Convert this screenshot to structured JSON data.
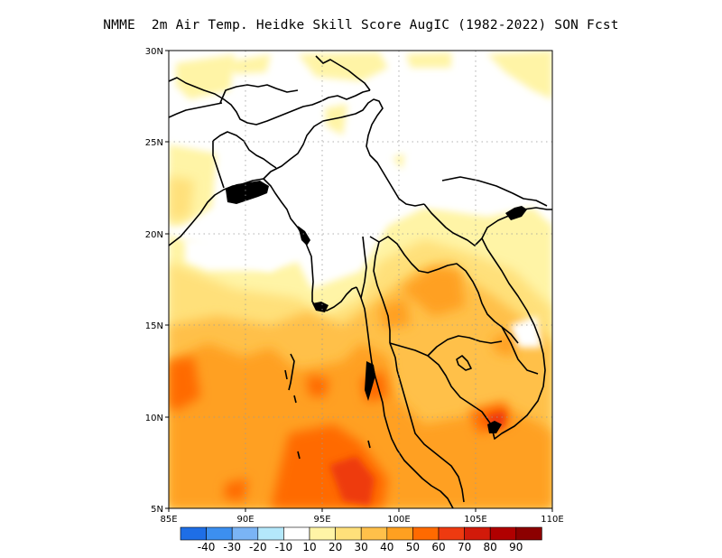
{
  "title": "NMME  2m Air Temp. Heidke Skill Score AugIC (1982-2022) SON Fcst",
  "map": {
    "lon_labels": [
      "85E",
      "90E",
      "95E",
      "100E",
      "105E",
      "110E"
    ],
    "lat_labels": [
      "30N",
      "25N",
      "20N",
      "15N",
      "10N",
      "5N"
    ],
    "lon_range": [
      85,
      110
    ],
    "lat_range": [
      5,
      30
    ],
    "projection": "lat-lon",
    "grid": "dotted",
    "features": [
      "coastlines",
      "country borders"
    ]
  },
  "colorbar": {
    "labels": [
      "-40",
      "-30",
      "-20",
      "-10",
      "10",
      "20",
      "30",
      "40",
      "50",
      "60",
      "70",
      "80",
      "90"
    ],
    "colors": [
      "#1e6ee6",
      "#3c8ff0",
      "#7ab4f5",
      "#b4e8fb",
      "#ffffff",
      "#fff4a6",
      "#ffe07a",
      "#ffc04a",
      "#ffa020",
      "#ff6a00",
      "#ee3a10",
      "#d21a0a",
      "#b00000",
      "#8c0000"
    ]
  }
}
